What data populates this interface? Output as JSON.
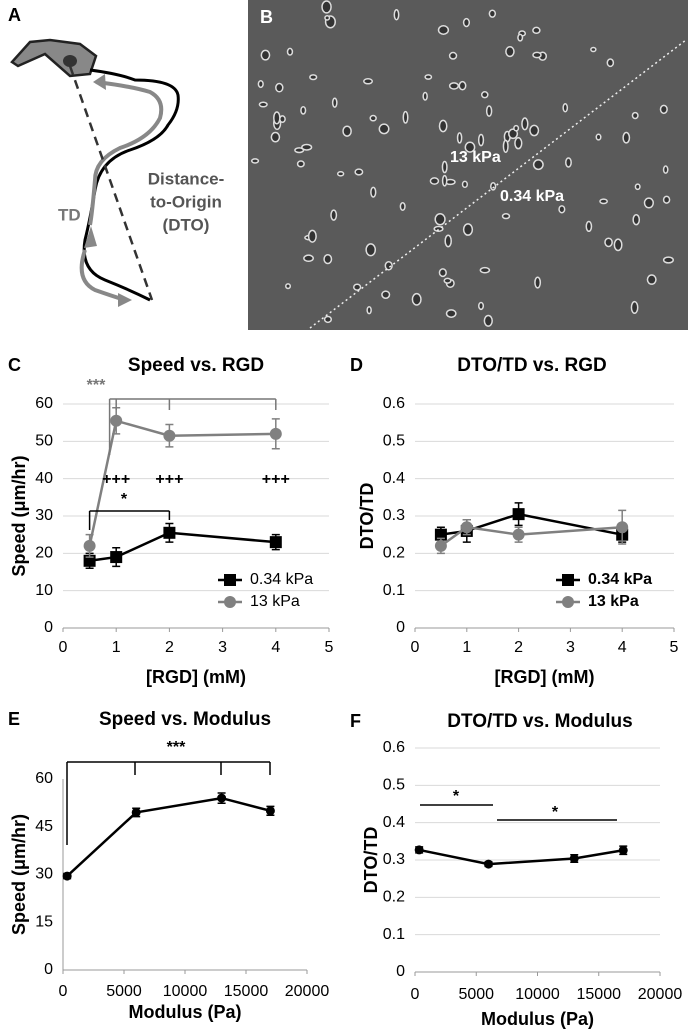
{
  "panels": {
    "a": {
      "letter": "A",
      "td": "TD",
      "dto": [
        "Distance-",
        "to-Origin",
        "(DTO)"
      ]
    },
    "b": {
      "letter": "B",
      "upper": "13 kPa",
      "lower": "0.34 kPa"
    }
  },
  "chart_data": [
    {
      "type": "line",
      "letter": "C",
      "title": "Speed vs. RGD",
      "x_label": "[RGD] (mM)",
      "y_label": "Speed (μm/hr)",
      "x": [
        0.5,
        1,
        2,
        4
      ],
      "xlim": [
        0,
        5
      ],
      "xticks": [
        0,
        1,
        2,
        3,
        4,
        5
      ],
      "ylim": [
        0,
        60
      ],
      "yticks": [
        0,
        10,
        20,
        30,
        40,
        50,
        60
      ],
      "grid": true,
      "legend": "lower right",
      "series": [
        {
          "name": "0.34 kPa",
          "color": "#000000",
          "marker": "square",
          "values": [
            18,
            19,
            25.5,
            23
          ],
          "errors": [
            2,
            2.5,
            2.5,
            2
          ]
        },
        {
          "name": "13 kPa",
          "color": "#808080",
          "marker": "circle",
          "values": [
            22,
            55.5,
            51.5,
            52
          ],
          "errors": [
            3,
            3.5,
            3,
            4
          ]
        }
      ],
      "annotations": [
        "***",
        "+++",
        "+++",
        "+++",
        "*"
      ]
    },
    {
      "type": "line",
      "letter": "D",
      "title": "DTO/TD vs. RGD",
      "x_label": "[RGD] (mM)",
      "y_label": "DTO/TD",
      "x": [
        0.5,
        1,
        2,
        4
      ],
      "xlim": [
        0,
        5
      ],
      "xticks": [
        0,
        1,
        2,
        3,
        4,
        5
      ],
      "ylim": [
        0,
        0.6
      ],
      "yticks": [
        0,
        0.1,
        0.2,
        0.3,
        0.4,
        0.5,
        0.6
      ],
      "grid": true,
      "legend": "lower right",
      "series": [
        {
          "name": "0.34 kPa",
          "color": "#000000",
          "marker": "square",
          "values": [
            0.25,
            0.26,
            0.305,
            0.25
          ],
          "errors": [
            0.02,
            0.03,
            0.03,
            0.02
          ]
        },
        {
          "name": "13 kPa",
          "color": "#808080",
          "marker": "circle",
          "values": [
            0.22,
            0.27,
            0.25,
            0.27
          ],
          "errors": [
            0.02,
            0.02,
            0.02,
            0.045
          ]
        }
      ],
      "annotations": []
    },
    {
      "type": "line",
      "letter": "E",
      "title": "Speed vs. Modulus",
      "x_label": "Modulus (Pa)",
      "y_label": "Speed (μm/hr)",
      "x": [
        340,
        6000,
        13000,
        17000
      ],
      "xlim": [
        0,
        20000
      ],
      "xticks": [
        0,
        5000,
        10000,
        15000,
        20000
      ],
      "ylim": [
        0,
        60
      ],
      "yticks": [
        0,
        15,
        30,
        45,
        60
      ],
      "grid": false,
      "series": [
        {
          "color": "#000000",
          "marker": "circle",
          "values": [
            29.5,
            49.5,
            54,
            50
          ],
          "errors": [
            0.8,
            1.3,
            1.6,
            1.4
          ]
        }
      ],
      "annotations": [
        "***"
      ]
    },
    {
      "type": "line",
      "letter": "F",
      "title": "DTO/TD vs. Modulus",
      "x_label": "Modulus (Pa)",
      "y_label": "DTO/TD",
      "x": [
        340,
        6000,
        13000,
        17000
      ],
      "xlim": [
        0,
        20000
      ],
      "xticks": [
        0,
        5000,
        10000,
        15000,
        20000
      ],
      "ylim": [
        0,
        0.6
      ],
      "yticks": [
        0,
        0.1,
        0.2,
        0.3,
        0.4,
        0.5,
        0.6
      ],
      "grid": true,
      "series": [
        {
          "color": "#000000",
          "marker": "circle",
          "values": [
            0.327,
            0.289,
            0.304,
            0.326
          ],
          "errors": [
            0.008,
            0.006,
            0.01,
            0.011
          ]
        }
      ],
      "annotations": [
        "*",
        "*"
      ]
    }
  ]
}
